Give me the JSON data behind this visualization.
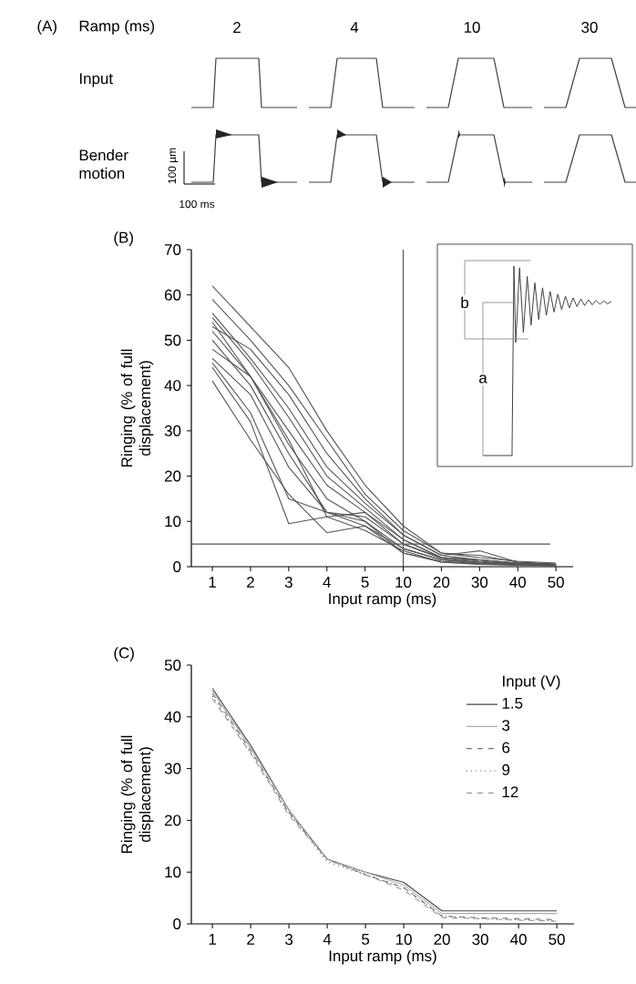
{
  "chart_data": [
    {
      "type": "other",
      "title": "(A)",
      "xlabel": "Ramp (ms)",
      "categories": [
        "2",
        "4",
        "10",
        "30"
      ],
      "annotations": [
        "Input",
        "Bender motion",
        "100 µm",
        "100 ms"
      ]
    },
    {
      "type": "line",
      "title": "(B)",
      "xlabel": "Input ramp (ms)",
      "ylabel": "Ringing (% of full displacement)",
      "categories": [
        "1",
        "2",
        "3",
        "4",
        "5",
        "10",
        "20",
        "30",
        "40",
        "50"
      ],
      "ylim": [
        0,
        70
      ],
      "yticks": [
        0,
        10,
        20,
        30,
        40,
        50,
        60,
        70
      ],
      "series": [
        {
          "color": "#555555",
          "values": [
            62,
            53,
            44,
            30,
            18,
            9,
            3,
            2,
            1.2,
            0.8
          ]
        },
        {
          "color": "#555555",
          "values": [
            59,
            50,
            40,
            28,
            16,
            8,
            3,
            2.5,
            1,
            0.6
          ]
        },
        {
          "color": "#555555",
          "values": [
            56,
            46,
            35,
            22,
            14,
            7,
            2.5,
            3.5,
            1,
            0.5
          ]
        },
        {
          "color": "#555555",
          "values": [
            55,
            45,
            33,
            20,
            13,
            6,
            2,
            1.5,
            0.8,
            0.5
          ]
        },
        {
          "color": "#555555",
          "values": [
            54,
            42,
            30,
            18,
            12,
            6,
            2,
            1.5,
            0.7,
            0.4
          ]
        },
        {
          "color": "#555555",
          "values": [
            53,
            48,
            38,
            25,
            15,
            7,
            2.5,
            1.5,
            0.8,
            0.5
          ]
        },
        {
          "color": "#555555",
          "values": [
            52,
            42,
            28,
            11,
            12,
            5,
            2,
            1.2,
            0.6,
            0.4
          ]
        },
        {
          "color": "#555555",
          "values": [
            50,
            40,
            25,
            12,
            11,
            5,
            1.8,
            1,
            0.6,
            0.3
          ]
        },
        {
          "color": "#555555",
          "values": [
            48,
            42,
            27,
            15,
            10,
            4,
            1.5,
            1,
            0.5,
            0.3
          ]
        },
        {
          "color": "#555555",
          "values": [
            46,
            38,
            22,
            12,
            9,
            4,
            1.5,
            0.8,
            0.5,
            0.3
          ]
        },
        {
          "color": "#555555",
          "values": [
            45,
            34,
            15,
            12,
            10,
            3,
            1.2,
            0.7,
            0.4,
            0.2
          ]
        },
        {
          "color": "#555555",
          "values": [
            44,
            32,
            9.5,
            11,
            8,
            3.5,
            1,
            0.6,
            0.4,
            0.2
          ]
        },
        {
          "color": "#555555",
          "values": [
            41,
            28,
            16,
            7.5,
            9,
            3,
            1,
            0.5,
            0.3,
            0.2
          ]
        }
      ],
      "ref_lines": [
        {
          "axis": "y",
          "value": 5,
          "color": "#555555"
        },
        {
          "axis": "x",
          "value": "10",
          "color": "#555555"
        }
      ],
      "annotations": [
        "b",
        "a"
      ]
    },
    {
      "type": "line",
      "title": "(C)",
      "xlabel": "Input ramp (ms)",
      "ylabel": "Ringing (% of full displacement)",
      "legend_title": "Input (V)",
      "legend": "top right",
      "categories": [
        "1",
        "2",
        "3",
        "4",
        "5",
        "10",
        "20",
        "30",
        "40",
        "50"
      ],
      "ylim": [
        0,
        50
      ],
      "yticks": [
        0,
        10,
        20,
        30,
        40,
        50
      ],
      "series": [
        {
          "name": "1.5",
          "color": "#444444",
          "line_style": "solid",
          "values": [
            45.5,
            34.5,
            22,
            12.5,
            10,
            8,
            2.5,
            2.5,
            2.5,
            2.5
          ]
        },
        {
          "name": "3",
          "color": "#aaaaaa",
          "line_style": "solid",
          "values": [
            45,
            34,
            22,
            12.5,
            10,
            7.5,
            2,
            2,
            2,
            2
          ]
        },
        {
          "name": "6",
          "color": "#777777",
          "line_style": "dashed",
          "values": [
            44.5,
            33.5,
            21.5,
            12.5,
            9.5,
            7,
            1.5,
            1.2,
            1,
            0.8
          ]
        },
        {
          "name": "9",
          "color": "#555555",
          "line_style": "dotted",
          "values": [
            44,
            33,
            21.5,
            12,
            9.5,
            7,
            1.5,
            1,
            0.8,
            0.6
          ]
        },
        {
          "name": "12",
          "color": "#999999",
          "line_style": "dashed",
          "values": [
            43.5,
            33,
            21,
            12.5,
            9.5,
            6.5,
            1.2,
            1,
            0.7,
            0.5
          ]
        }
      ]
    }
  ]
}
